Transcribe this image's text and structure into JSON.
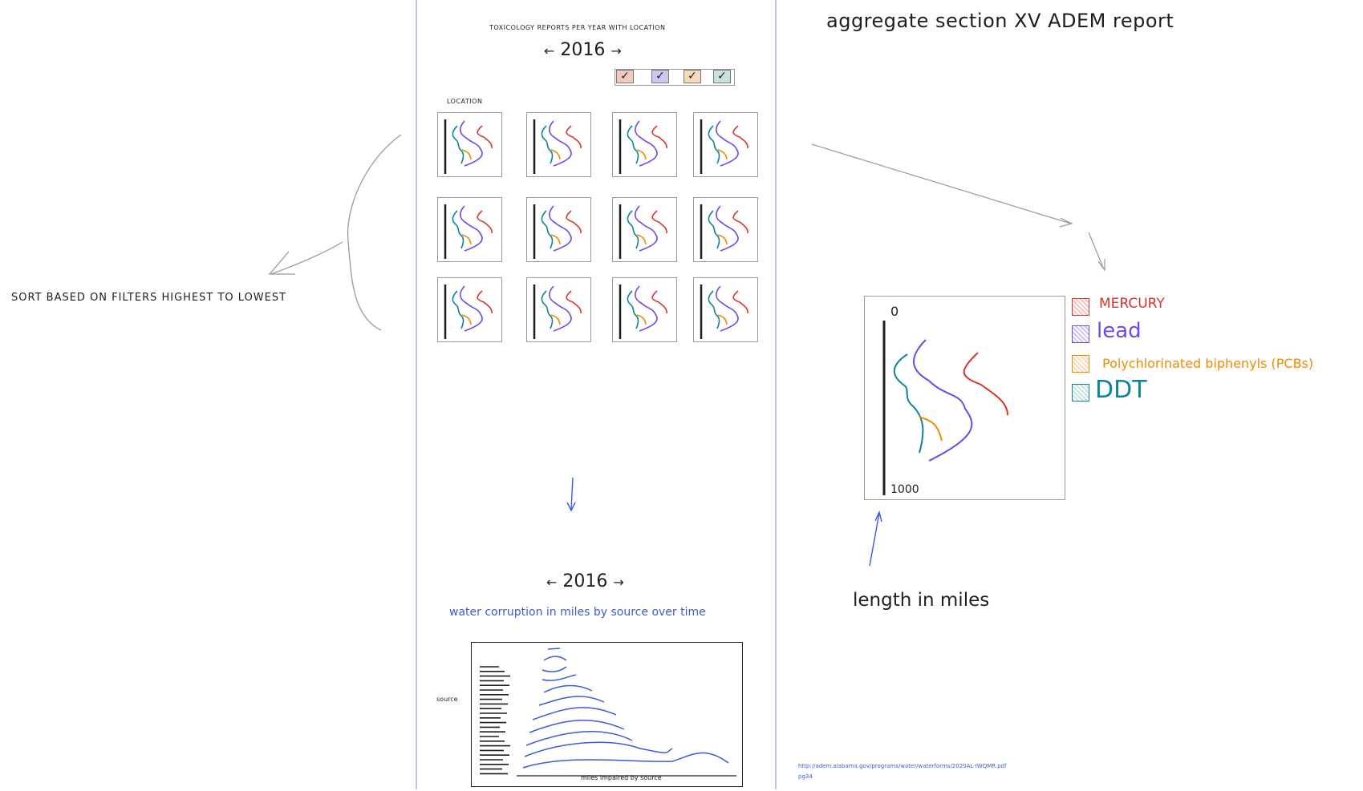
{
  "left_panel": {
    "sort_note": "SORT BASED ON FILTERS HIGHEST TO LOWEST"
  },
  "center_panel": {
    "title": "TOXICOLOGY REPORTS PER YEAR WITH LOCATION",
    "year_selector": {
      "prev_arrow": "←",
      "year": "2016",
      "next_arrow": "→"
    },
    "filters": [
      {
        "mark": "✓",
        "color": "#f4c7c3"
      },
      {
        "mark": "✓",
        "color": "#d0c4f0"
      },
      {
        "mark": "✓",
        "color": "#f8d9b8"
      },
      {
        "mark": "✓",
        "color": "#c7e3df"
      }
    ],
    "location_label": "LOCATION",
    "thumbnail_count": 12
  },
  "bottom_panel": {
    "year_selector": {
      "prev_arrow": "←",
      "year": "2016",
      "next_arrow": "→"
    },
    "title": "water corruption in miles by source over time",
    "y_label": "source",
    "x_label": "miles impaired by source",
    "legend_small_1": "",
    "legend_small_2": ""
  },
  "right_panel": {
    "heading": "aggregate section XV ADEM report",
    "chart": {
      "y_top": "0",
      "y_bottom": "1000"
    },
    "legend": [
      {
        "label": "MERCURY",
        "color": "#d9342b"
      },
      {
        "label": "lead",
        "color": "#7048e8"
      },
      {
        "label": "Polychlorinated biphenyls (PCBs)",
        "color": "#f08c00"
      },
      {
        "label": "DDT",
        "color": "#0c8599"
      }
    ],
    "axis_note": "length in miles",
    "source_url": "http://adem.alabama.gov/programs/water/waterforms/2020AL-IWQMR.pdf",
    "source_page": "pg34"
  },
  "colors": {
    "mercury": "#d9342b",
    "lead": "#7048e8",
    "pcb": "#f08c00",
    "ddt": "#0c8599",
    "blue_annotation": "#3b5bdb",
    "divider": "#a9b4e8"
  }
}
